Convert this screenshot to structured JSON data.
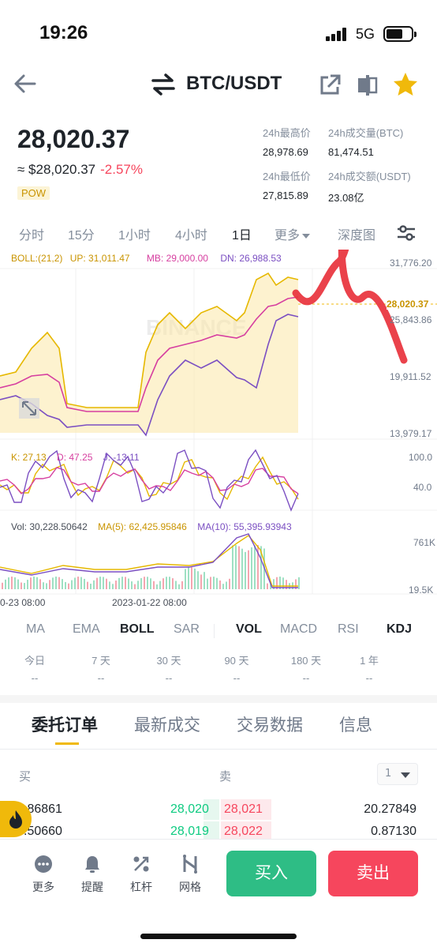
{
  "status": {
    "time": "19:26",
    "network": "5G"
  },
  "nav": {
    "title": "BTC/USDT"
  },
  "price": {
    "last": "28,020.37",
    "fiat": "≈ $28,020.37",
    "change": "-2.57%",
    "tag": "POW"
  },
  "stats": {
    "high_label": "24h最高价",
    "high": "28,978.69",
    "vol_btc_label": "24h成交量(BTC)",
    "vol_btc": "81,474.51",
    "low_label": "24h最低价",
    "low": "27,815.89",
    "vol_usdt_label": "24h成交额(USDT)",
    "vol_usdt": "23.08亿"
  },
  "timeframes": [
    "分时",
    "15分",
    "1小时",
    "4小时",
    "1日",
    "更多",
    "深度图"
  ],
  "active_timeframe": "1日",
  "indicators": {
    "boll": {
      "name": "BOLL:(21,2)",
      "up": "UP: 31,011.47",
      "mb": "MB: 29,000.00",
      "dn": "DN: 26,988.53"
    },
    "kdj": {
      "k": "K: 27.13",
      "d": "D: 47.25",
      "j": "J: -13.11"
    },
    "vol": {
      "vol": "Vol: 30,228.50642",
      "ma5": "MA(5): 62,425.95846",
      "ma10": "MA(10): 55,395.93943"
    }
  },
  "axes": {
    "price_ticks": [
      "31,776.20",
      "25,843.86",
      "19,911.52",
      "13,979.17"
    ],
    "current_price": "28,020.37",
    "kdj_ticks": [
      "100.0",
      "40.0"
    ],
    "vol_ticks": [
      "761K",
      "19.5K"
    ],
    "dates": [
      "0-23 08:00",
      "2023-01-22 08:00"
    ]
  },
  "watermark": "BINANCE",
  "indicator_tabs": [
    "MA",
    "EMA",
    "BOLL",
    "SAR",
    "VOL",
    "MACD",
    "RSI",
    "KDJ"
  ],
  "indicator_tabs_active": [
    "BOLL",
    "VOL",
    "KDJ"
  ],
  "performance": [
    {
      "label": "今日",
      "value": "--"
    },
    {
      "label": "7 天",
      "value": "--"
    },
    {
      "label": "30 天",
      "value": "--"
    },
    {
      "label": "90 天",
      "value": "--"
    },
    {
      "label": "180 天",
      "value": "--"
    },
    {
      "label": "1 年",
      "value": "--"
    }
  ],
  "order_tabs": [
    "委托订单",
    "最新成交",
    "交易数据",
    "信息"
  ],
  "order_book": {
    "buy_label": "买",
    "sell_label": "卖",
    "depth": "1",
    "rows": [
      {
        "bid_qty": ".86861",
        "bid": "28,020",
        "ask": "28,021",
        "ask_qty": "20.27849"
      },
      {
        "bid_qty": ".50660",
        "bid": "28,019",
        "ask": "28,022",
        "ask_qty": "0.87130"
      }
    ]
  },
  "bottom": {
    "more": "更多",
    "alert": "提醒",
    "leverage": "杠杆",
    "grid": "网格",
    "buy": "买入",
    "sell": "卖出"
  },
  "colors": {
    "up": "#0ecb81",
    "down": "#f6465d",
    "accent": "#f0b90b",
    "boll_up": "#e6b800",
    "boll_mb": "#d63fa0",
    "boll_dn": "#7b4fc2"
  }
}
